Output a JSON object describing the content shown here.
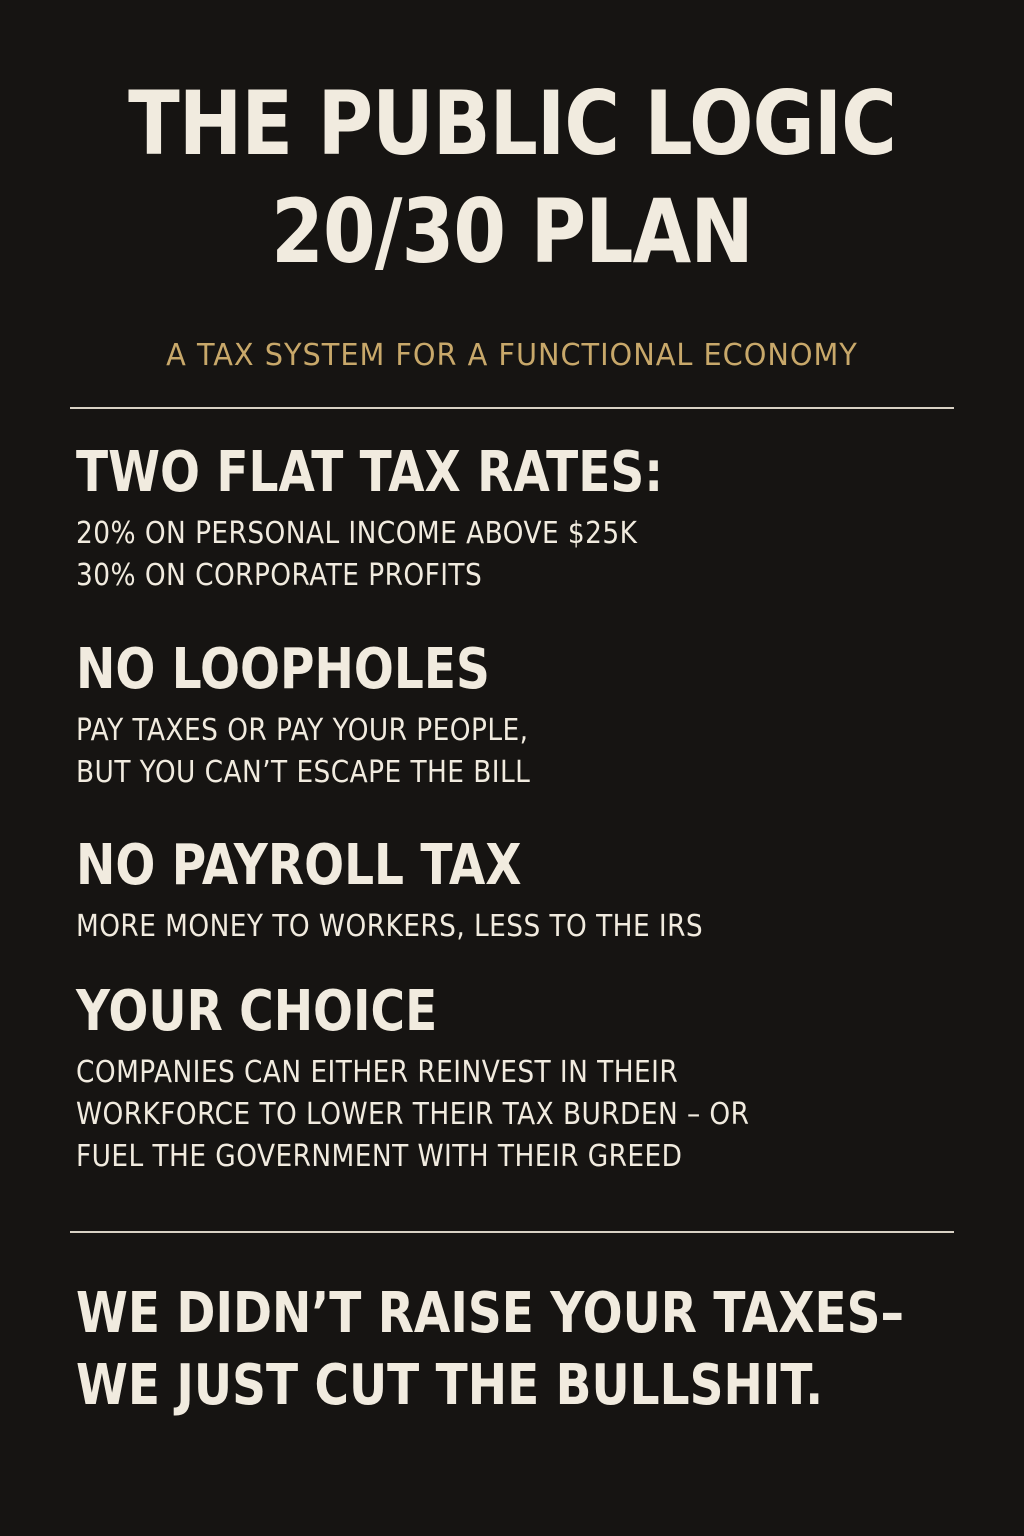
{
  "title": {
    "line1": "THE PUBLIC LOGIC",
    "line2": "20/30 PLAN"
  },
  "subtitle": "A TAX SYSTEM FOR A FUNCTIONAL ECONOMY",
  "sections": [
    {
      "heading": "TWO FLAT TAX RATES:",
      "lines": [
        "20% ON PERSONAL INCOME ABOVE $25K",
        "30% ON CORPORATE PROFITS"
      ]
    },
    {
      "heading": "NO LOOPHOLES",
      "lines": [
        "PAY TAXES OR PAY YOUR PEOPLE,",
        "BUT YOU CAN’T ESCAPE THE BILL"
      ]
    },
    {
      "heading": "NO PAYROLL TAX",
      "lines": [
        "MORE MONEY TO WORKERS, LESS TO THE IRS"
      ]
    },
    {
      "heading": "YOUR CHOICE",
      "lines": [
        "COMPANIES CAN EITHER REINVEST IN THEIR",
        "WORKFORCE TO LOWER THEIR TAX BURDEN – OR",
        "FUEL THE GOVERNMENT WITH THEIR GREED"
      ]
    }
  ],
  "closing": {
    "line1": "WE DIDN’T RAISE YOUR TAXES–",
    "line2": "WE JUST CUT THE BULLSHIT."
  },
  "colors": {
    "background": "#161412",
    "text": "#f1ebdf",
    "accent": "#c8a86a"
  }
}
